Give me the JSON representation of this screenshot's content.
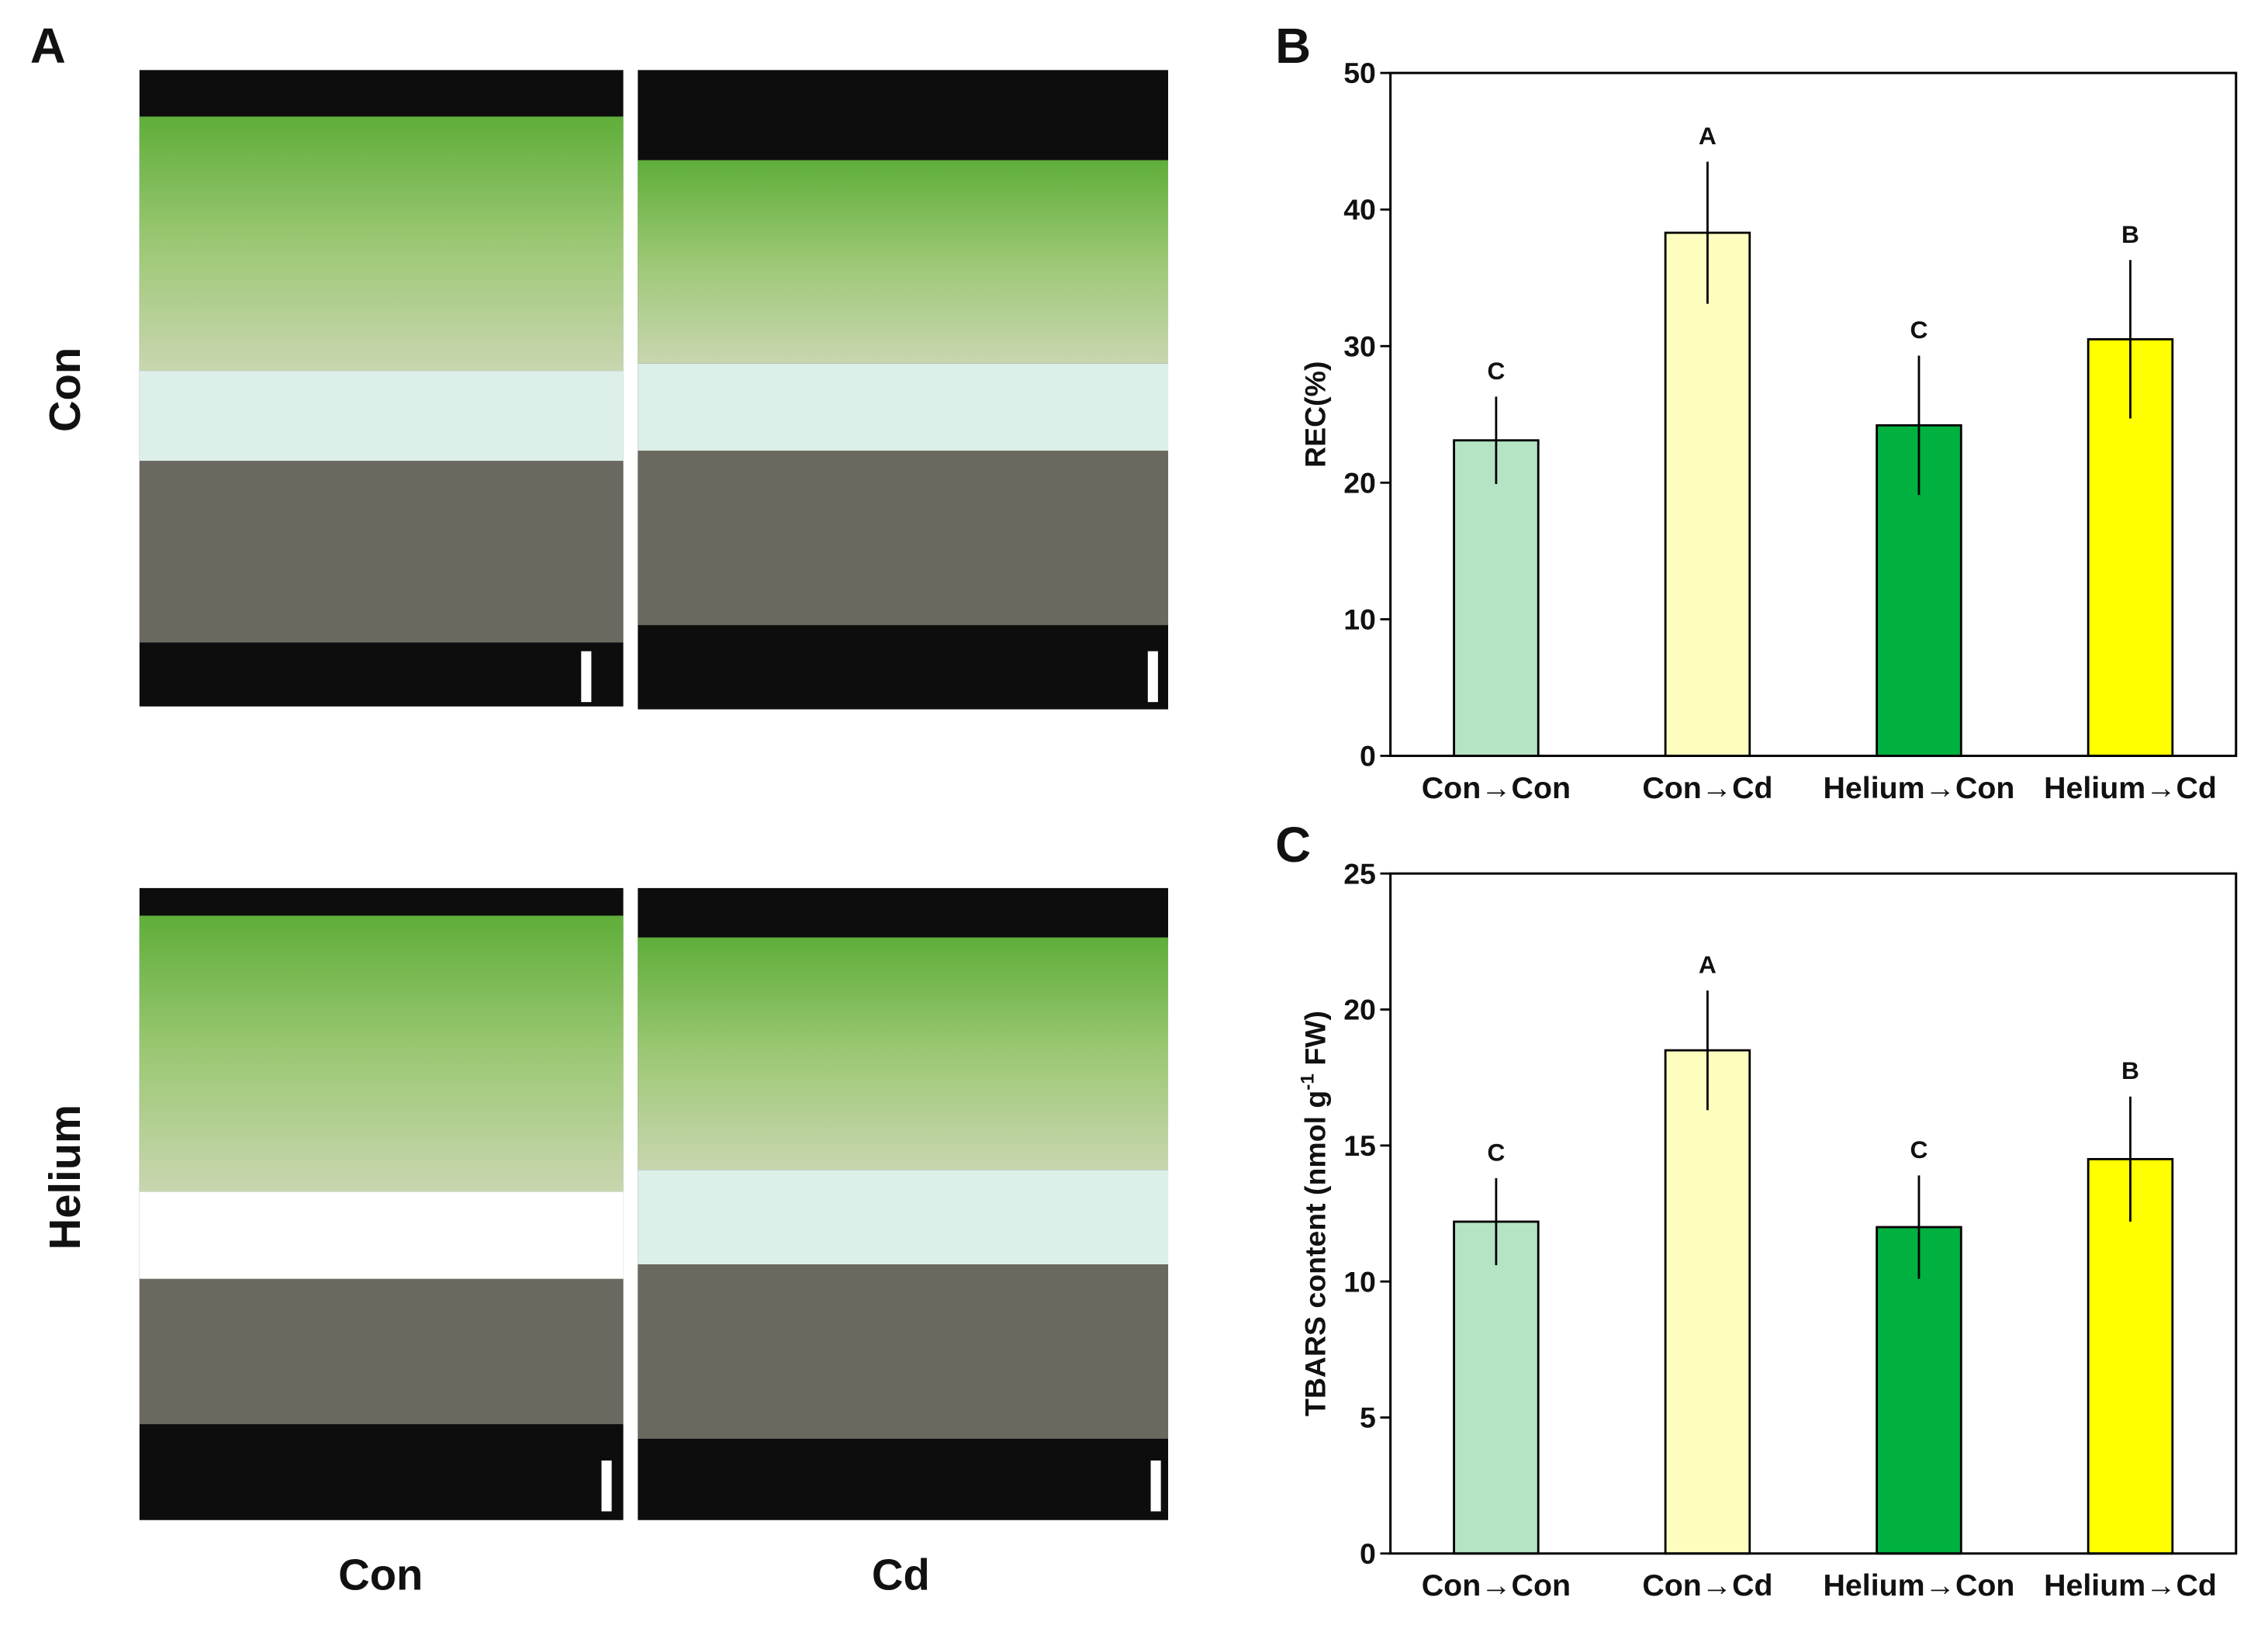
{
  "figure_a": {
    "label": "A",
    "row_labels": [
      "Con",
      "Helium"
    ],
    "column_labels": [
      "Con",
      "Cd"
    ]
  },
  "chart_data": [
    {
      "type": "bar",
      "panel_label": "B",
      "y_label": [
        "REC(%)"
      ],
      "categories": [
        "Con→Con",
        "Con→Cd",
        "Helium→Con",
        "Helium→Cd"
      ],
      "values": [
        23.1,
        38.3,
        24.2,
        30.5
      ],
      "errors": [
        3.2,
        5.2,
        5.1,
        5.8
      ],
      "annotations": [
        "C",
        "A",
        "C",
        "B"
      ],
      "colors": [
        "#b5e4c4",
        "#fdfdbf",
        "#00b140",
        "#ffff00"
      ],
      "ylim": [
        0,
        50
      ],
      "yticks": [
        0,
        10,
        20,
        30,
        40,
        50
      ]
    },
    {
      "type": "bar",
      "panel_label": "C",
      "y_label": [
        "TBARS content (nmol g",
        "-1",
        " FW)"
      ],
      "categories": [
        "Con→Con",
        "Con→Cd",
        "Helium→Con",
        "Helium→Cd"
      ],
      "values": [
        12.2,
        18.5,
        12.0,
        14.5
      ],
      "errors": [
        1.6,
        2.2,
        1.9,
        2.3
      ],
      "annotations": [
        "C",
        "A",
        "C",
        "B"
      ],
      "colors": [
        "#b5e4c4",
        "#fdfdbf",
        "#00b140",
        "#ffff00"
      ],
      "ylim": [
        0,
        25
      ],
      "yticks": [
        0,
        5,
        10,
        15,
        20,
        25
      ]
    }
  ]
}
